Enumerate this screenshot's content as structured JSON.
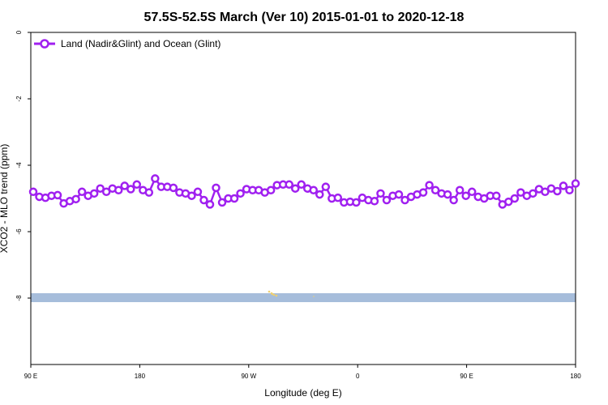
{
  "chart_data": {
    "type": "line",
    "title": "57.5S-52.5S March (Ver 10)   2015-01-01 to 2020-12-18",
    "xlabel": "Longitude (deg E)",
    "ylabel": "XCO2 - MLO trend (ppm)",
    "x_ticks": [
      "90 E",
      "180",
      "90 W",
      "0",
      "90 E",
      "180"
    ],
    "y_ticks": [
      "0",
      "-2",
      "-4",
      "-6",
      "-8"
    ],
    "y_tick_values": [
      0,
      -2,
      -4,
      -6,
      -8
    ],
    "ylim": [
      0,
      -10
    ],
    "grid": false,
    "legend_position": "top-left",
    "series": [
      {
        "name": "Land (Nadir&Glint) and Ocean (Glint)",
        "color": "#a020f0",
        "values": [
          -4.8,
          -4.95,
          -4.98,
          -4.92,
          -4.9,
          -5.15,
          -5.08,
          -5.02,
          -4.8,
          -4.92,
          -4.85,
          -4.7,
          -4.8,
          -4.7,
          -4.75,
          -4.62,
          -4.72,
          -4.58,
          -4.75,
          -4.82,
          -4.4,
          -4.65,
          -4.65,
          -4.68,
          -4.82,
          -4.85,
          -4.92,
          -4.8,
          -5.05,
          -5.18,
          -4.68,
          -5.12,
          -5.0,
          -5.0,
          -4.85,
          -4.72,
          -4.75,
          -4.75,
          -4.82,
          -4.75,
          -4.6,
          -4.58,
          -4.58,
          -4.7,
          -4.58,
          -4.7,
          -4.75,
          -4.88,
          -4.65,
          -5.0,
          -4.98,
          -5.12,
          -5.1,
          -5.12,
          -4.98,
          -5.05,
          -5.08,
          -4.85,
          -5.05,
          -4.92,
          -4.88,
          -5.05,
          -4.95,
          -4.88,
          -4.82,
          -4.6,
          -4.75,
          -4.85,
          -4.88,
          -5.05,
          -4.75,
          -4.92,
          -4.8,
          -4.95,
          -5.0,
          -4.92,
          -4.92,
          -5.18,
          -5.1,
          -5.0,
          -4.82,
          -4.92,
          -4.85,
          -4.72,
          -4.8,
          -4.7,
          -4.78,
          -4.62,
          -4.75,
          -4.55
        ]
      }
    ],
    "land_ocean_band": {
      "y_value": -8,
      "ocean_color": "#a6bddb",
      "land_color": "#f0d070"
    }
  }
}
